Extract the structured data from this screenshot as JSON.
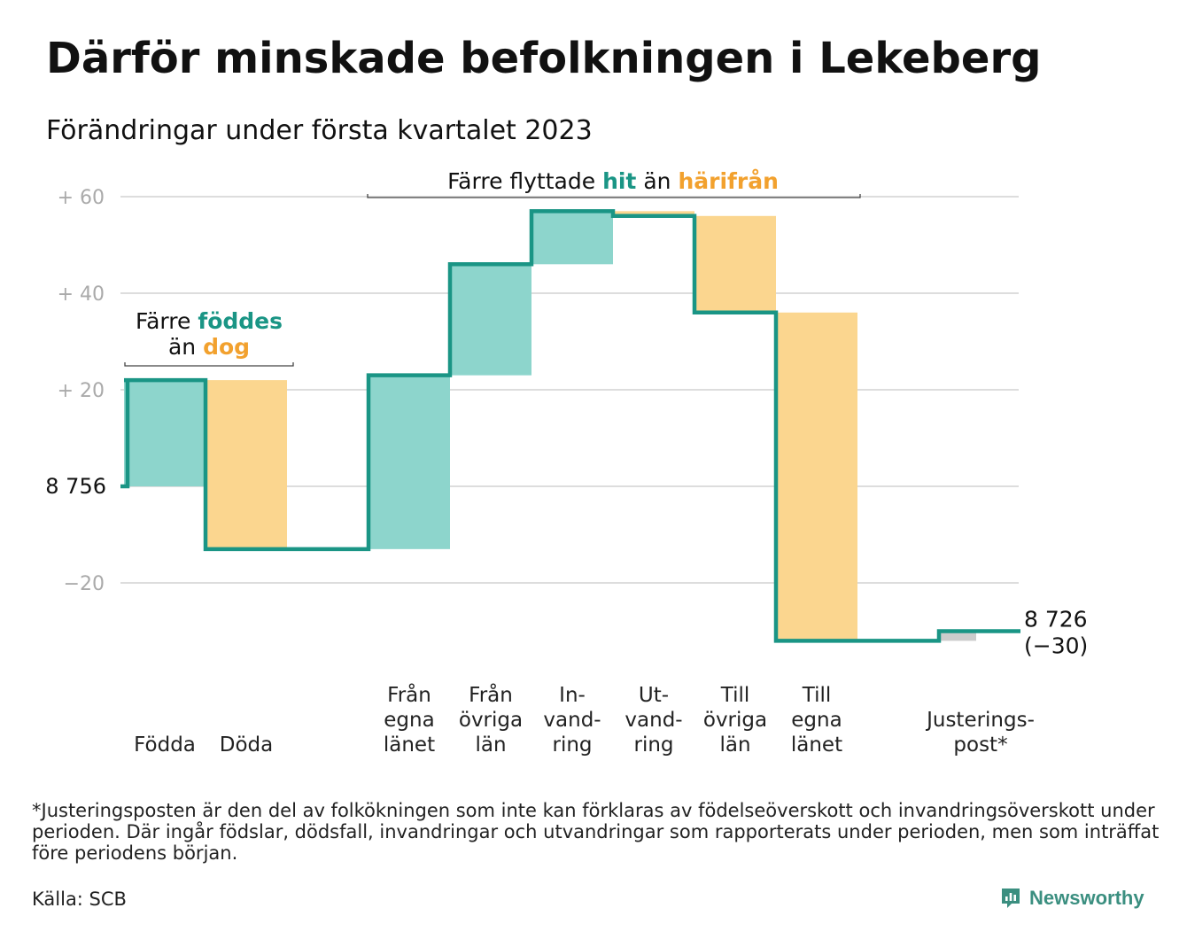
{
  "title": "Därför minskade befolkningen i Lekeberg",
  "subtitle": "Förändringar under första kvartalet 2023",
  "colors": {
    "inflow": "#8dd5cc",
    "outflow": "#fbd68f",
    "adjustment": "#cccccc",
    "line": "#1a9585",
    "teal_text": "#1a9585",
    "orange_text": "#f2a12e",
    "grid": "#dddddd",
    "tick": "#aaaaaa"
  },
  "chart_data": {
    "type": "waterfall",
    "start_value": 8756,
    "end_value": 8726,
    "start_label": "8 756",
    "end_label": "8 726",
    "end_change_label": "(−30)",
    "y_ticks": [
      {
        "value": 60,
        "label": "+ 60"
      },
      {
        "value": 40,
        "label": "+ 40"
      },
      {
        "value": 20,
        "label": "+ 20"
      },
      {
        "value": 0,
        "label": ""
      },
      {
        "value": -20,
        "label": "−20"
      }
    ],
    "ylim": [
      -34,
      60
    ],
    "steps": [
      {
        "category": "Födda",
        "lines": [
          "Födda"
        ],
        "change": 22,
        "kind": "in"
      },
      {
        "category": "Döda",
        "lines": [
          "Döda"
        ],
        "change": -35,
        "kind": "out"
      },
      {
        "category": "",
        "lines": [],
        "change": 0,
        "kind": "gap"
      },
      {
        "category": "Från egna länet",
        "lines": [
          "Från",
          "egna",
          "länet"
        ],
        "change": 36,
        "kind": "in"
      },
      {
        "category": "Från övriga län",
        "lines": [
          "Från",
          "övriga",
          "län"
        ],
        "change": 23,
        "kind": "in"
      },
      {
        "category": "Invandring",
        "lines": [
          "In-",
          "vand-",
          "ring"
        ],
        "change": 11,
        "kind": "in"
      },
      {
        "category": "Utvandring",
        "lines": [
          "Ut-",
          "vand-",
          "ring"
        ],
        "change": -1,
        "kind": "out"
      },
      {
        "category": "Till övriga län",
        "lines": [
          "Till",
          "övriga",
          "län"
        ],
        "change": -20,
        "kind": "out"
      },
      {
        "category": "Till egna länet",
        "lines": [
          "Till",
          "egna",
          "länet"
        ],
        "change": -68,
        "kind": "out"
      },
      {
        "category": "",
        "lines": [],
        "change": 0,
        "kind": "gap"
      },
      {
        "category": "Justeringspost*",
        "lines": [
          "Justerings-",
          "post*"
        ],
        "change": 2,
        "kind": "adj"
      }
    ],
    "annotations": {
      "births": {
        "prefix": "Färre ",
        "highlight1": "föddes",
        "line2_prefix": "än ",
        "highlight2": "dog"
      },
      "moves": {
        "prefix": "Färre flyttade ",
        "highlight1": "hit",
        "middle": " än ",
        "highlight2": "härifrån"
      }
    }
  },
  "footnote": "*Justeringsposten är den del av folkökningen som inte kan förklaras av födelseöverskott och invandringsöverskott under perioden. Där ingår födslar, dödsfall, invandringar och utvandringar som rapporterats under perioden, men som inträffat före periodens början.",
  "source": "Källa: SCB",
  "brand": {
    "name": "Newsworthy",
    "icon": "newsworthy-logo-icon"
  }
}
